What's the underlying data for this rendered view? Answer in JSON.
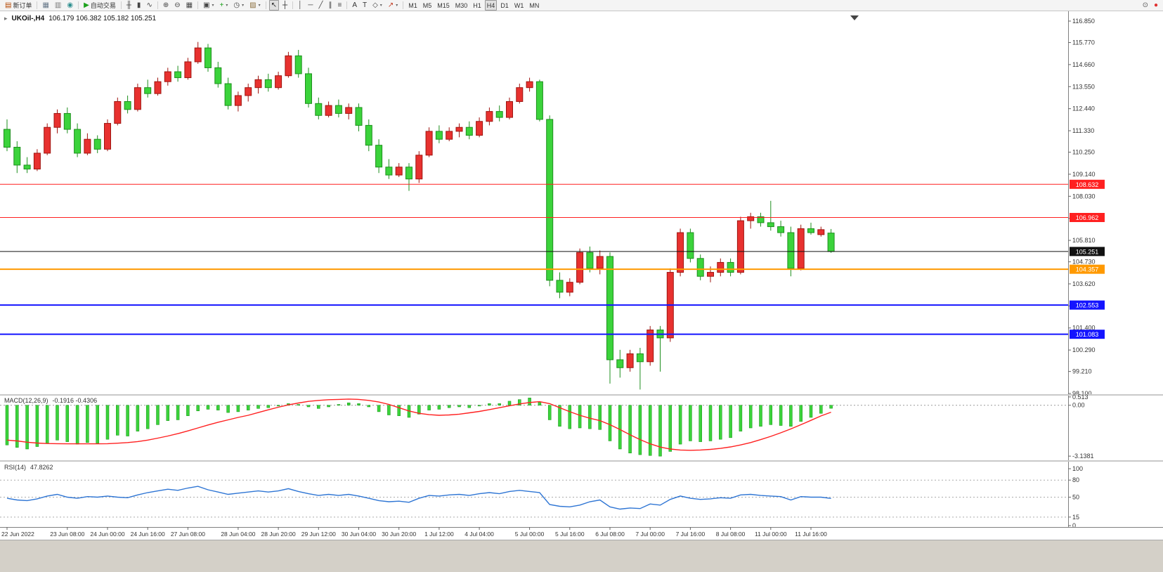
{
  "toolbar": {
    "groups": [
      {
        "items": [
          {
            "name": "new-order-button",
            "glyph": "▤",
            "glyph_color": "#b34700",
            "label": "新订单"
          }
        ]
      },
      {
        "items": [
          {
            "name": "chart-window-button",
            "glyph": "▦",
            "glyph_color": "#667788"
          },
          {
            "name": "print-button",
            "glyph": "▥",
            "glyph_color": "#777777"
          },
          {
            "name": "globe-button",
            "glyph": "◉",
            "glyph_color": "#2d8f8f"
          }
        ]
      },
      {
        "items": [
          {
            "name": "autotrading-button",
            "glyph": "▶",
            "glyph_color": "#1ca11c",
            "label": "自动交易"
          }
        ]
      },
      {
        "items": [
          {
            "name": "bar-chart-button",
            "glyph": "╫",
            "glyph_color": "#444444"
          },
          {
            "name": "candlestick-chart-button",
            "glyph": "▮",
            "glyph_color": "#444444"
          },
          {
            "name": "line-chart-button",
            "glyph": "∿",
            "glyph_color": "#444444"
          }
        ]
      },
      {
        "items": [
          {
            "name": "zoom-in-button",
            "glyph": "⊕",
            "glyph_color": "#444444"
          },
          {
            "name": "zoom-out-button",
            "glyph": "⊖",
            "glyph_color": "#444444"
          },
          {
            "name": "tile-windows-button",
            "glyph": "▦",
            "glyph_color": "#444444"
          }
        ]
      },
      {
        "items": [
          {
            "name": "new-chart-button",
            "glyph": "▣",
            "glyph_color": "#444444",
            "dropdown": true
          },
          {
            "name": "indicators-button",
            "glyph": "+",
            "glyph_color": "#18a018",
            "dropdown": true
          },
          {
            "name": "periods-button",
            "glyph": "◷",
            "glyph_color": "#444444",
            "dropdown": true
          },
          {
            "name": "templates-button",
            "glyph": "▨",
            "glyph_color": "#8a6d3b",
            "dropdown": true
          }
        ]
      },
      {
        "items": [
          {
            "name": "cursor-button",
            "glyph": "↖",
            "glyph_color": "#222222",
            "active": true
          },
          {
            "name": "crosshair-button",
            "glyph": "┼",
            "glyph_color": "#222222"
          }
        ]
      },
      {
        "items": [
          {
            "name": "vertical-line-button",
            "glyph": "│",
            "glyph_color": "#444444"
          },
          {
            "name": "horizontal-line-button",
            "glyph": "─",
            "glyph_color": "#444444"
          },
          {
            "name": "trendline-button",
            "glyph": "╱",
            "glyph_color": "#444444"
          },
          {
            "name": "channel-button",
            "glyph": "∥",
            "glyph_color": "#444444"
          },
          {
            "name": "fibonacci-button",
            "glyph": "≡",
            "glyph_color": "#444444"
          }
        ]
      },
      {
        "items": [
          {
            "name": "text-button",
            "glyph": "A",
            "glyph_color": "#333333"
          },
          {
            "name": "text-label-button",
            "glyph": "T",
            "glyph_color": "#333333"
          },
          {
            "name": "shapes-button",
            "glyph": "◇",
            "glyph_color": "#444444",
            "dropdown": true
          },
          {
            "name": "arrows-button",
            "glyph": "↗",
            "glyph_color": "#c23b22",
            "dropdown": true
          }
        ]
      }
    ],
    "timeframes": [
      {
        "label": "M1"
      },
      {
        "label": "M5"
      },
      {
        "label": "M15"
      },
      {
        "label": "M30"
      },
      {
        "label": "H1"
      },
      {
        "label": "H4",
        "active": true
      },
      {
        "label": "D1"
      },
      {
        "label": "W1"
      },
      {
        "label": "MN"
      }
    ],
    "right_items": [
      {
        "name": "search-button",
        "glyph": "⊙",
        "glyph_color": "#555555"
      },
      {
        "name": "community-button",
        "glyph": "●",
        "glyph_color": "#e03030"
      }
    ]
  },
  "chart": {
    "symbol_period": "UKOil-,H4",
    "ohlc_text": "106.179 106.382 105.182 105.251",
    "up_color": "#e8312f",
    "up_border": "#9e1510",
    "down_color": "#3bd33b",
    "down_border": "#1e8f1e",
    "price_axis_ticks": [
      "116.850",
      "115.770",
      "114.660",
      "113.550",
      "112.440",
      "111.330",
      "110.250",
      "109.140",
      "108.030",
      "106.920",
      "105.810",
      "104.730",
      "103.620",
      "102.510",
      "101.400",
      "100.290",
      "99.210",
      "98.100"
    ],
    "levels": [
      {
        "label": "108.632",
        "price": 108.632,
        "color": "#ff2020",
        "width": 1
      },
      {
        "label": "106.962",
        "price": 106.962,
        "color": "#ff2020",
        "width": 1
      },
      {
        "label": "105.251",
        "price": 105.251,
        "color": "#111111",
        "width": 1,
        "role": "last-price"
      },
      {
        "label": "104.357",
        "price": 104.357,
        "color": "#ff9900",
        "width": 2
      },
      {
        "label": "102.553",
        "price": 102.553,
        "color": "#1414ff",
        "width": 2
      },
      {
        "label": "101.083",
        "price": 101.083,
        "color": "#1414ff",
        "width": 2
      }
    ],
    "candles": [
      [
        111.4,
        111.9,
        110.3,
        110.5
      ],
      [
        110.5,
        110.8,
        109.2,
        109.6
      ],
      [
        109.6,
        110.0,
        109.2,
        109.4
      ],
      [
        109.4,
        110.4,
        109.3,
        110.2
      ],
      [
        110.2,
        111.7,
        110.1,
        111.5
      ],
      [
        111.5,
        112.4,
        111.2,
        112.2
      ],
      [
        112.2,
        112.5,
        111.2,
        111.4
      ],
      [
        111.4,
        111.7,
        110.0,
        110.2
      ],
      [
        110.2,
        111.2,
        110.1,
        110.9
      ],
      [
        110.9,
        111.1,
        110.2,
        110.4
      ],
      [
        110.4,
        111.9,
        110.3,
        111.7
      ],
      [
        111.7,
        113.0,
        111.6,
        112.8
      ],
      [
        112.8,
        113.1,
        112.2,
        112.4
      ],
      [
        112.4,
        113.7,
        112.3,
        113.5
      ],
      [
        113.5,
        113.9,
        113.0,
        113.2
      ],
      [
        113.2,
        114.0,
        113.1,
        113.8
      ],
      [
        113.8,
        114.5,
        113.6,
        114.3
      ],
      [
        114.3,
        114.6,
        113.8,
        114.0
      ],
      [
        114.0,
        115.0,
        113.9,
        114.8
      ],
      [
        114.8,
        115.8,
        114.7,
        115.5
      ],
      [
        115.5,
        115.7,
        114.3,
        114.5
      ],
      [
        114.5,
        114.8,
        113.5,
        113.7
      ],
      [
        113.7,
        114.0,
        112.4,
        112.6
      ],
      [
        112.6,
        113.3,
        112.3,
        113.1
      ],
      [
        113.1,
        113.7,
        112.8,
        113.5
      ],
      [
        113.5,
        114.1,
        113.2,
        113.9
      ],
      [
        113.9,
        114.2,
        113.3,
        113.5
      ],
      [
        113.5,
        114.3,
        113.4,
        114.1
      ],
      [
        114.1,
        115.3,
        114.0,
        115.1
      ],
      [
        115.1,
        115.4,
        114.0,
        114.2
      ],
      [
        114.2,
        114.5,
        112.5,
        112.7
      ],
      [
        112.7,
        113.0,
        111.9,
        112.1
      ],
      [
        112.1,
        112.8,
        112.0,
        112.6
      ],
      [
        112.6,
        112.9,
        112.0,
        112.2
      ],
      [
        112.2,
        112.7,
        111.9,
        112.5
      ],
      [
        112.5,
        112.7,
        111.3,
        111.6
      ],
      [
        111.6,
        111.9,
        110.3,
        110.6
      ],
      [
        110.6,
        110.9,
        109.2,
        109.5
      ],
      [
        109.5,
        109.9,
        108.9,
        109.1
      ],
      [
        109.1,
        109.7,
        109.0,
        109.5
      ],
      [
        109.5,
        109.7,
        108.3,
        108.9
      ],
      [
        108.9,
        110.3,
        108.7,
        110.1
      ],
      [
        110.1,
        111.5,
        110.0,
        111.3
      ],
      [
        111.3,
        111.6,
        110.7,
        110.9
      ],
      [
        110.9,
        111.5,
        110.8,
        111.3
      ],
      [
        111.3,
        111.7,
        111.0,
        111.5
      ],
      [
        111.5,
        111.8,
        110.9,
        111.1
      ],
      [
        111.1,
        112.0,
        111.0,
        111.8
      ],
      [
        111.8,
        112.5,
        111.6,
        112.3
      ],
      [
        112.3,
        112.6,
        111.8,
        112.0
      ],
      [
        112.0,
        113.0,
        111.9,
        112.8
      ],
      [
        112.8,
        113.7,
        112.7,
        113.5
      ],
      [
        113.5,
        114.0,
        113.3,
        113.8
      ],
      [
        113.8,
        113.9,
        111.8,
        111.9
      ],
      [
        111.9,
        112.1,
        103.5,
        103.8
      ],
      [
        103.8,
        104.2,
        102.9,
        103.2
      ],
      [
        103.2,
        103.9,
        103.0,
        103.7
      ],
      [
        103.7,
        105.4,
        103.6,
        105.2
      ],
      [
        105.2,
        105.5,
        104.2,
        104.4
      ],
      [
        104.4,
        105.3,
        104.1,
        105.0
      ],
      [
        105.0,
        105.2,
        98.6,
        99.8
      ],
      [
        99.8,
        100.3,
        98.9,
        99.4
      ],
      [
        99.4,
        100.3,
        99.2,
        100.1
      ],
      [
        100.1,
        100.4,
        98.3,
        99.7
      ],
      [
        99.7,
        101.5,
        99.5,
        101.3
      ],
      [
        101.3,
        101.5,
        99.2,
        100.9
      ],
      [
        100.9,
        104.4,
        100.7,
        104.2
      ],
      [
        104.2,
        106.4,
        104.0,
        106.2
      ],
      [
        106.2,
        106.4,
        104.7,
        104.9
      ],
      [
        104.9,
        105.1,
        103.8,
        104.0
      ],
      [
        104.0,
        104.5,
        103.7,
        104.2
      ],
      [
        104.2,
        104.9,
        104.0,
        104.7
      ],
      [
        104.7,
        104.9,
        104.0,
        104.2
      ],
      [
        104.2,
        107.0,
        104.1,
        106.8
      ],
      [
        106.8,
        107.2,
        106.4,
        107.0
      ],
      [
        107.0,
        107.2,
        106.5,
        106.7
      ],
      [
        106.7,
        107.8,
        106.3,
        106.5
      ],
      [
        106.5,
        106.8,
        106.0,
        106.2
      ],
      [
        106.2,
        106.5,
        104.0,
        104.4
      ],
      [
        104.4,
        106.6,
        104.3,
        106.4
      ],
      [
        106.4,
        106.7,
        106.1,
        106.2
      ],
      [
        106.1,
        106.5,
        106.0,
        106.35
      ],
      [
        106.179,
        106.382,
        105.182,
        105.251
      ]
    ]
  },
  "macd": {
    "name": "MACD(12,26,9)",
    "values_text": "-0.1916 -0.4306",
    "histogram_color": "#3bd33b",
    "signal_color": "#ff2020",
    "scale_labels": [
      {
        "text": "0.513",
        "value": 0.513
      },
      {
        "text": "0.00",
        "value": 0
      },
      {
        "text": "-3.1381",
        "value": -3.1381
      }
    ],
    "histogram": [
      -2.45,
      -2.6,
      -2.7,
      -2.55,
      -2.35,
      -2.15,
      -2.25,
      -2.4,
      -2.3,
      -2.35,
      -2.1,
      -1.85,
      -1.9,
      -1.6,
      -1.45,
      -1.2,
      -0.95,
      -0.9,
      -0.65,
      -0.35,
      -0.25,
      -0.3,
      -0.45,
      -0.4,
      -0.3,
      -0.2,
      -0.15,
      -0.05,
      0.1,
      0.05,
      -0.1,
      -0.2,
      -0.1,
      0.05,
      0.15,
      0.1,
      -0.1,
      -0.4,
      -0.6,
      -0.65,
      -0.75,
      -0.55,
      -0.3,
      -0.25,
      -0.15,
      -0.1,
      -0.15,
      -0.05,
      0.1,
      0.1,
      0.25,
      0.35,
      0.45,
      0.2,
      -0.9,
      -1.3,
      -1.45,
      -1.4,
      -1.45,
      -1.5,
      -2.2,
      -2.7,
      -2.95,
      -3.05,
      -3.1,
      -3.14,
      -2.85,
      -2.4,
      -2.2,
      -2.25,
      -2.2,
      -2.1,
      -2.0,
      -1.6,
      -1.4,
      -1.3,
      -1.2,
      -1.25,
      -1.3,
      -1.0,
      -0.75,
      -0.5,
      -0.19
    ],
    "signal": [
      -2.15,
      -2.2,
      -2.28,
      -2.33,
      -2.36,
      -2.37,
      -2.38,
      -2.38,
      -2.38,
      -2.38,
      -2.37,
      -2.34,
      -2.3,
      -2.24,
      -2.15,
      -2.03,
      -1.9,
      -1.75,
      -1.58,
      -1.4,
      -1.22,
      -1.05,
      -0.9,
      -0.75,
      -0.62,
      -0.45,
      -0.28,
      -0.12,
      0.02,
      0.14,
      0.24,
      0.3,
      0.34,
      0.36,
      0.38,
      0.36,
      0.3,
      0.2,
      0.05,
      -0.15,
      -0.35,
      -0.5,
      -0.58,
      -0.62,
      -0.6,
      -0.55,
      -0.47,
      -0.38,
      -0.27,
      -0.15,
      -0.03,
      0.08,
      0.17,
      0.22,
      0.1,
      -0.15,
      -0.4,
      -0.62,
      -0.8,
      -0.95,
      -1.2,
      -1.5,
      -1.82,
      -2.12,
      -2.38,
      -2.58,
      -2.7,
      -2.76,
      -2.78,
      -2.76,
      -2.72,
      -2.66,
      -2.57,
      -2.45,
      -2.3,
      -2.12,
      -1.92,
      -1.7,
      -1.46,
      -1.2,
      -0.93,
      -0.66,
      -0.43
    ]
  },
  "rsi": {
    "name": "RSI(14)",
    "value_text": "47.8262",
    "line_color": "#2e75d4",
    "scale_labels": [
      {
        "text": "100",
        "value": 100
      },
      {
        "text": "80",
        "value": 80
      },
      {
        "text": "50",
        "value": 50
      },
      {
        "text": "15",
        "value": 15
      },
      {
        "text": "0",
        "value": 0
      }
    ],
    "levels": [
      80,
      50,
      15
    ],
    "line": [
      48,
      45,
      44,
      47,
      52,
      55,
      50,
      48,
      51,
      50,
      52,
      50,
      49,
      54,
      58,
      61,
      64,
      62,
      66,
      69,
      63,
      59,
      55,
      57,
      59,
      61,
      59,
      61,
      65,
      60,
      56,
      53,
      55,
      53,
      55,
      52,
      48,
      44,
      42,
      43,
      41,
      48,
      53,
      52,
      54,
      55,
      53,
      56,
      58,
      56,
      60,
      62,
      60,
      58,
      37,
      34,
      33,
      36,
      42,
      45,
      33,
      29,
      31,
      30,
      38,
      36,
      46,
      52,
      48,
      46,
      47,
      49,
      48,
      54,
      55,
      53,
      52,
      51,
      45,
      51,
      50,
      50,
      47.83
    ]
  },
  "time_axis": {
    "labels": [
      {
        "text": "22 Jun 2022",
        "index": 0
      },
      {
        "text": "23 Jun 08:00",
        "index": 6
      },
      {
        "text": "24 Jun 00:00",
        "index": 10
      },
      {
        "text": "24 Jun 16:00",
        "index": 14
      },
      {
        "text": "27 Jun 08:00",
        "index": 18
      },
      {
        "text": "28 Jun 04:00",
        "index": 23
      },
      {
        "text": "28 Jun 20:00",
        "index": 27
      },
      {
        "text": "29 Jun 12:00",
        "index": 31
      },
      {
        "text": "30 Jun 04:00",
        "index": 35
      },
      {
        "text": "30 Jun 20:00",
        "index": 39
      },
      {
        "text": "1 Jul 12:00",
        "index": 43
      },
      {
        "text": "4 Jul 04:00",
        "index": 47
      },
      {
        "text": "5 Jul 00:00",
        "index": 52
      },
      {
        "text": "5 Jul 16:00",
        "index": 56
      },
      {
        "text": "6 Jul 08:00",
        "index": 60
      },
      {
        "text": "7 Jul 00:00",
        "index": 64
      },
      {
        "text": "7 Jul 16:00",
        "index": 68
      },
      {
        "text": "8 Jul 08:00",
        "index": 72
      },
      {
        "text": "11 Jul 00:00",
        "index": 76
      },
      {
        "text": "11 Jul 16:00",
        "index": 80
      }
    ]
  }
}
